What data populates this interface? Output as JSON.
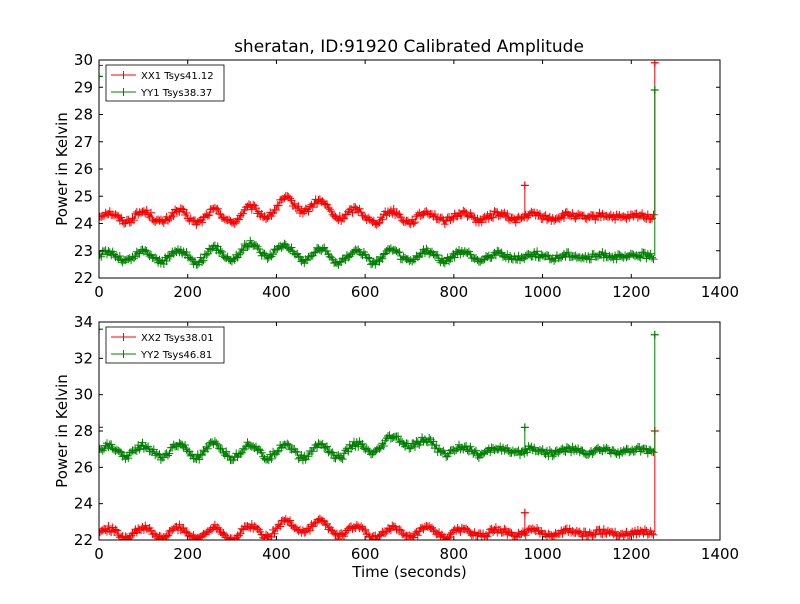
{
  "figure_title": "sheratan, ID:91920 Calibrated Amplitude",
  "chart_data": [
    {
      "type": "line",
      "title": "sheratan, ID:91920 Calibrated Amplitude",
      "xlabel": "",
      "ylabel": "Power in Kelvin",
      "xlim": [
        0,
        1400
      ],
      "ylim": [
        22,
        30
      ],
      "xticks": [
        0,
        200,
        400,
        600,
        800,
        1000,
        1200,
        1400
      ],
      "yticks": [
        22,
        23,
        24,
        25,
        26,
        27,
        28,
        29,
        30
      ],
      "legend_position": "top-left",
      "grid": false,
      "series": [
        {
          "name": "XX1 Tsys41.12",
          "color": "#ff0000",
          "base": 24.25,
          "ripple": 0.25,
          "bump_center": 450,
          "bump_height": 0.45,
          "bump_width": 90,
          "spikes": [
            [
              0,
              29.8
            ],
            [
              960,
              25.4
            ],
            [
              1253,
              29.9
            ]
          ]
        },
        {
          "name": "YY1 Tsys38.37",
          "color": "#008000",
          "base": 22.8,
          "ripple": 0.25,
          "bump_center": 370,
          "bump_height": 0.25,
          "bump_width": 90,
          "spikes": [
            [
              0,
              29.4
            ],
            [
              1253,
              28.9
            ]
          ]
        }
      ]
    },
    {
      "type": "line",
      "title": "",
      "xlabel": "Time (seconds)",
      "ylabel": "Power in Kelvin",
      "xlim": [
        0,
        1400
      ],
      "ylim": [
        22,
        34
      ],
      "xticks": [
        0,
        200,
        400,
        600,
        800,
        1000,
        1200,
        1400
      ],
      "yticks": [
        22,
        24,
        26,
        28,
        30,
        32,
        34
      ],
      "legend_position": "top-left",
      "grid": false,
      "series": [
        {
          "name": "XX2 Tsys38.01",
          "color": "#ff0000",
          "base": 22.4,
          "ripple": 0.35,
          "bump_center": 460,
          "bump_height": 0.4,
          "bump_width": 80,
          "spikes": [
            [
              0,
              28.2
            ],
            [
              960,
              23.5
            ],
            [
              1253,
              28.0
            ]
          ]
        },
        {
          "name": "YY2 Tsys46.81",
          "color": "#008000",
          "base": 26.9,
          "ripple": 0.4,
          "bump_center": 690,
          "bump_height": 0.55,
          "bump_width": 70,
          "spikes": [
            [
              0,
              33.6
            ],
            [
              960,
              28.2
            ],
            [
              1253,
              33.3
            ]
          ]
        }
      ]
    }
  ]
}
